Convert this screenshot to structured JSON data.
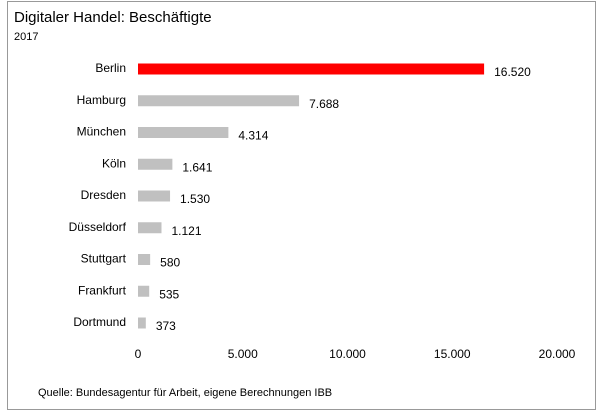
{
  "chart_data": {
    "type": "bar",
    "orientation": "horizontal",
    "title": "Digitaler Handel: Beschäftigte",
    "subtitle": "2017",
    "source": "Quelle: Bundesagentur für Arbeit, eigene Berechnungen IBB",
    "categories": [
      "Berlin",
      "Hamburg",
      "München",
      "Köln",
      "Dresden",
      "Düsseldorf",
      "Stuttgart",
      "Frankfurt",
      "Dortmund"
    ],
    "values": [
      16520,
      7688,
      4314,
      1641,
      1530,
      1121,
      580,
      535,
      373
    ],
    "value_labels": [
      "16.520",
      "7.688",
      "4.314",
      "1.641",
      "1.530",
      "1.121",
      "580",
      "535",
      "373"
    ],
    "colors": [
      "#ff0000",
      "#c0c0c0",
      "#c0c0c0",
      "#c0c0c0",
      "#c0c0c0",
      "#c0c0c0",
      "#c0c0c0",
      "#c0c0c0",
      "#c0c0c0"
    ],
    "xlim": [
      0,
      20000
    ],
    "xticks": [
      0,
      {
        "value": 5000,
        "label": "5.000"
      },
      {
        "value": 10000,
        "label": "10.000"
      },
      {
        "value": 15000,
        "label": "15.000"
      },
      {
        "value": 20000,
        "label": "20.000"
      }
    ],
    "grid": false
  }
}
